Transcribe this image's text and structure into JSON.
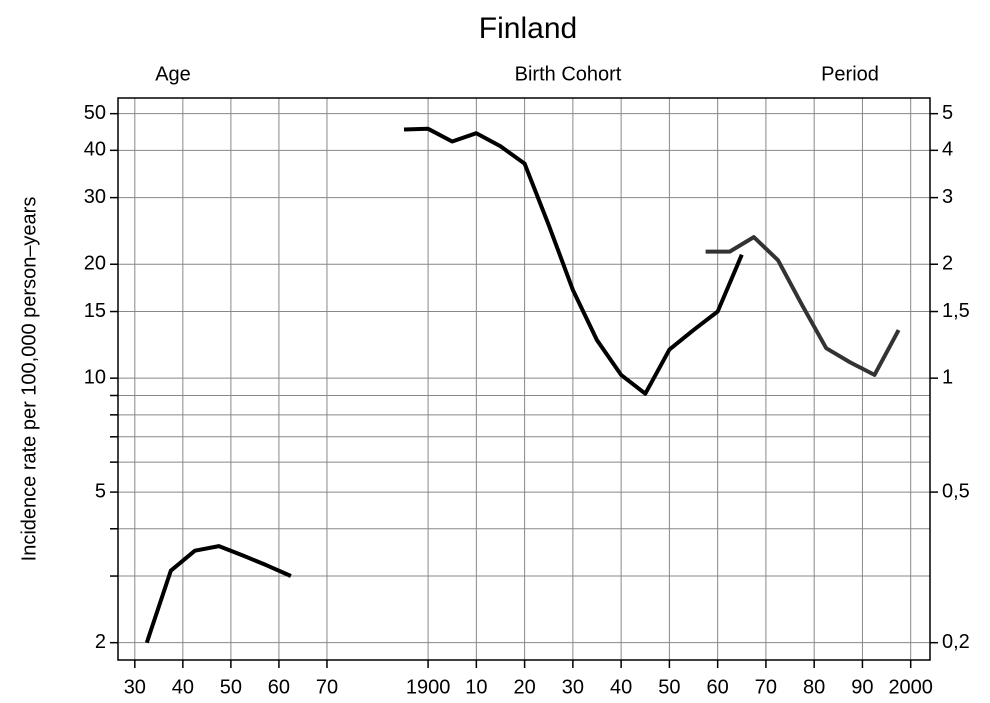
{
  "chart_data": [
    {
      "type": "line",
      "title": "Finland",
      "ylabel": "Incidence rate per 100,000 person–years",
      "log_y": true,
      "grid": true,
      "xlim": [
        26.5,
        80
      ],
      "xticks": [
        30,
        40,
        50,
        60,
        70
      ],
      "ylim": [
        1.8,
        55
      ],
      "yticks": [
        2,
        5,
        10,
        15,
        20,
        30,
        40,
        50
      ],
      "yminor": [
        3,
        4,
        6,
        7,
        8,
        9
      ],
      "series": [
        {
          "name": "Age",
          "color": "#000000",
          "x": [
            32.5,
            37.5,
            42.5,
            47.5,
            52.5,
            57.5,
            62.5
          ],
          "values": [
            2.0,
            3.1,
            3.5,
            3.6,
            3.4,
            3.2,
            3.0
          ]
        }
      ]
    },
    {
      "type": "line",
      "log_y": true,
      "grid": true,
      "xlim": [
        1889,
        2004
      ],
      "xticks": [
        1900,
        {
          "value": 1910,
          "label": "10"
        },
        {
          "value": 1920,
          "label": "20"
        },
        {
          "value": 1930,
          "label": "30"
        },
        {
          "value": 1940,
          "label": "40"
        },
        {
          "value": 1950,
          "label": "50"
        },
        {
          "value": 1960,
          "label": "60"
        },
        {
          "value": 1970,
          "label": "70"
        },
        {
          "value": 1980,
          "label": "80"
        },
        {
          "value": 1990,
          "label": "90"
        },
        2000
      ],
      "ylim": [
        1.8,
        55
      ],
      "y2lim": [
        0.18,
        5.5
      ],
      "y2ticks": [
        {
          "value": 0.2,
          "label": "0,2"
        },
        {
          "value": 0.5,
          "label": "0,5"
        },
        1,
        {
          "value": 1.5,
          "label": "1,5"
        },
        2,
        3,
        4,
        5
      ],
      "series": [
        {
          "name": "Birth Cohort",
          "color": "#000000",
          "x": [
            1895,
            1900,
            1905,
            1910,
            1915,
            1920,
            1925,
            1930,
            1935,
            1940,
            1945,
            1950,
            1955,
            1960,
            1965
          ],
          "values": [
            45.4,
            45.6,
            42.2,
            44.4,
            41.0,
            36.9,
            25.4,
            17.1,
            12.6,
            10.2,
            9.1,
            11.9,
            13.4,
            15.0,
            21.2
          ]
        },
        {
          "name": "Period",
          "color": "#333333",
          "axis": "y2",
          "x": [
            1957.5,
            1962.5,
            1967.5,
            1972.5,
            1977.5,
            1982.5,
            1987.5,
            1992.5,
            1997.5
          ],
          "values": [
            2.16,
            2.16,
            2.36,
            2.05,
            1.56,
            1.2,
            1.1,
            1.02,
            1.34
          ]
        }
      ]
    }
  ]
}
